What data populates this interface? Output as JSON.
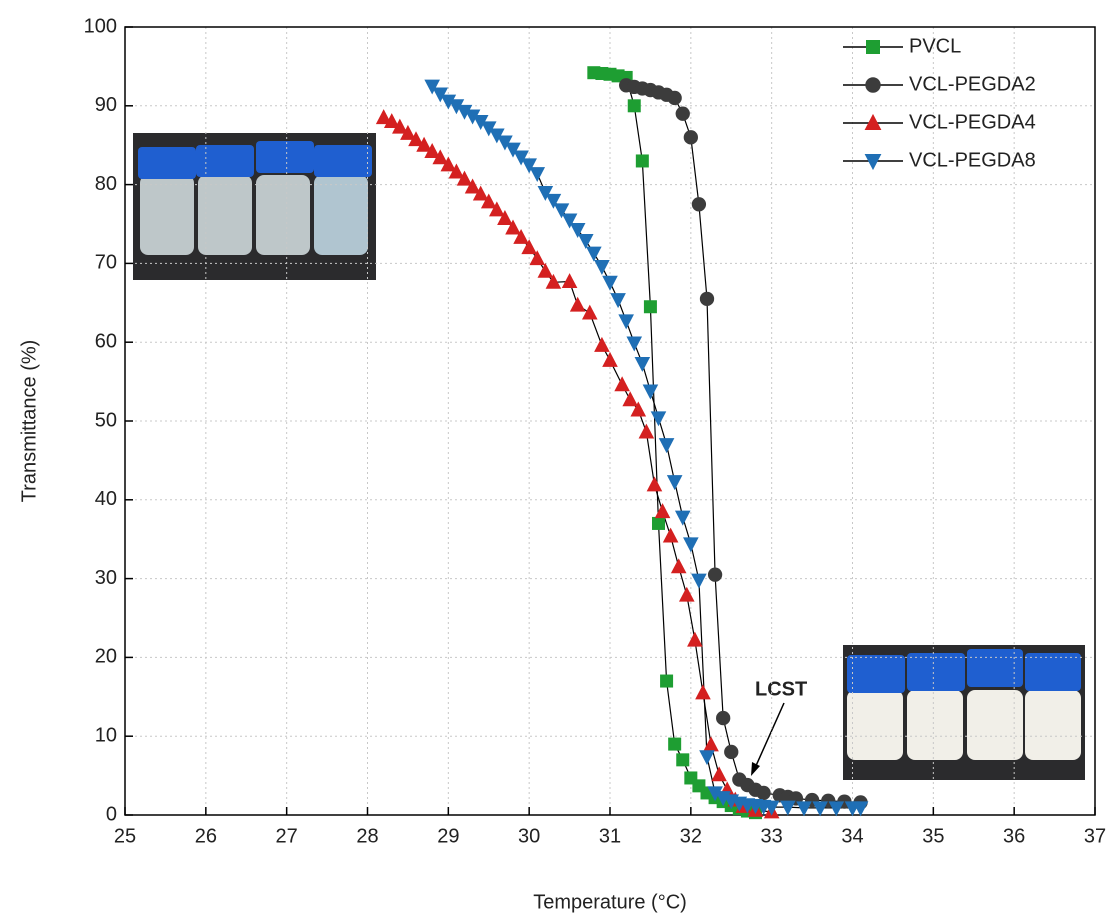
{
  "chart_data": {
    "type": "scatter",
    "x_label": "Temperature (°C)",
    "y_label": "Transmittance (%)",
    "xlim": [
      25,
      37
    ],
    "xticks": [
      25,
      26,
      27,
      28,
      29,
      30,
      31,
      32,
      33,
      34,
      35,
      36,
      37
    ],
    "ylim": [
      0,
      100
    ],
    "yticks": [
      0,
      10,
      20,
      30,
      40,
      50,
      60,
      70,
      80,
      90,
      100
    ],
    "grid": true,
    "legend": "upper right",
    "annotations": [
      {
        "text": "LCST"
      }
    ],
    "series": [
      {
        "name": "PVCL",
        "color": "#1e9e32",
        "marker": "square",
        "x": [
          30.8,
          30.9,
          31.0,
          31.1,
          31.2,
          31.3,
          31.4,
          31.5,
          31.6,
          31.7,
          31.8,
          31.9,
          32.0,
          32.1,
          32.2,
          32.3,
          32.4,
          32.5,
          32.6,
          32.7,
          32.8
        ],
        "values": [
          94.2,
          94.1,
          94.0,
          93.8,
          93.6,
          90,
          83,
          64.5,
          37,
          17,
          9,
          7,
          4.7,
          3.7,
          2.8,
          2.2,
          1.7,
          1.2,
          0.8,
          0.5,
          0.3
        ]
      },
      {
        "name": "VCL-PEGDA2",
        "color": "#3c3c3c",
        "marker": "circle",
        "x": [
          31.2,
          31.3,
          31.4,
          31.5,
          31.6,
          31.7,
          31.8,
          31.9,
          32.0,
          32.1,
          32.2,
          32.3,
          32.4,
          32.5,
          32.6,
          32.7,
          32.8,
          32.9,
          33.1,
          33.2,
          33.3,
          33.5,
          33.7,
          33.9,
          34.1
        ],
        "values": [
          92.6,
          92.4,
          92.2,
          92.0,
          91.7,
          91.4,
          91.0,
          89,
          86,
          77.5,
          65.5,
          30.5,
          12.3,
          8,
          4.5,
          3.8,
          3.2,
          2.8,
          2.5,
          2.3,
          2.1,
          1.9,
          1.8,
          1.7,
          1.6
        ]
      },
      {
        "name": "VCL-PEGDA4",
        "color": "#d42020",
        "marker": "triangle-up",
        "x": [
          28.2,
          28.3,
          28.4,
          28.5,
          28.6,
          28.7,
          28.8,
          28.9,
          29.0,
          29.1,
          29.2,
          29.3,
          29.4,
          29.5,
          29.6,
          29.7,
          29.8,
          29.9,
          30.0,
          30.1,
          30.2,
          30.3,
          30.5,
          30.6,
          30.75,
          30.9,
          31.0,
          31.15,
          31.25,
          31.35,
          31.45,
          31.55,
          31.65,
          31.75,
          31.85,
          31.95,
          32.05,
          32.15,
          32.25,
          32.35,
          32.45,
          32.55,
          32.65,
          32.8,
          33.0
        ],
        "values": [
          88.5,
          88,
          87.3,
          86.5,
          85.7,
          85,
          84.2,
          83.4,
          82.5,
          81.6,
          80.7,
          79.7,
          78.8,
          77.8,
          76.8,
          75.7,
          74.5,
          73.3,
          72,
          70.6,
          69,
          67.6,
          67.7,
          64.7,
          63.7,
          59.6,
          57.7,
          54.6,
          52.7,
          51.4,
          48.6,
          41.9,
          38.5,
          35.4,
          31.5,
          27.9,
          22.2,
          15.5,
          8.9,
          5.1,
          3.2,
          1.9,
          1.1,
          0.6,
          0.4
        ]
      },
      {
        "name": "VCL-PEGDA8",
        "color": "#1f6fb5",
        "marker": "triangle-down",
        "x": [
          28.8,
          28.9,
          29.0,
          29.1,
          29.2,
          29.3,
          29.4,
          29.5,
          29.6,
          29.7,
          29.8,
          29.9,
          30.0,
          30.1,
          30.2,
          30.3,
          30.4,
          30.5,
          30.6,
          30.7,
          30.8,
          30.9,
          31.0,
          31.1,
          31.2,
          31.3,
          31.4,
          31.5,
          31.6,
          31.7,
          31.8,
          31.9,
          32.0,
          32.1,
          32.2,
          32.3,
          32.4,
          32.5,
          32.6,
          32.7,
          32.8,
          32.9,
          33.0,
          33.2,
          33.4,
          33.6,
          33.8,
          34.0,
          34.1
        ],
        "values": [
          92.5,
          91.5,
          90.6,
          90,
          89.3,
          88.7,
          88,
          87.2,
          86.3,
          85.4,
          84.5,
          83.5,
          82.5,
          81.4,
          79,
          78,
          76.8,
          75.5,
          74.3,
          72.9,
          71.3,
          69.6,
          67.6,
          65.4,
          62.7,
          59.9,
          57.3,
          53.8,
          50.4,
          47,
          42.3,
          37.8,
          34.4,
          29.8,
          7.4,
          2.8,
          2.2,
          1.8,
          1.5,
          1.3,
          1.2,
          1.1,
          1.0,
          1.0,
          0.9,
          0.9,
          0.9,
          0.9,
          0.9
        ]
      }
    ]
  }
}
